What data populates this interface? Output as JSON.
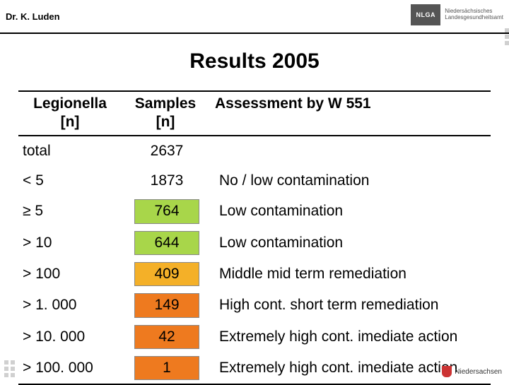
{
  "header": {
    "author": "Dr. K. Luden",
    "logo_abbrev": "NLGA",
    "logo_line1": "Niedersächsisches",
    "logo_line2": "Landesgesundheitsamt"
  },
  "title": "Results 2005",
  "table": {
    "columns": {
      "legionella": "Legionella\n[n]",
      "samples": "Samples\n[n]",
      "assessment": "Assessment by W 551"
    },
    "column_fontsize": 21,
    "cell_fontsize": 21,
    "border_color": "#000000",
    "cell_border_color": "#888888",
    "rows": [
      {
        "legionella": "total",
        "samples": "2637",
        "assessment": "",
        "samples_bg": "#ffffff"
      },
      {
        "legionella": "< 5",
        "samples": "1873",
        "assessment": "No / low contamination",
        "samples_bg": "#ffffff"
      },
      {
        "legionella": "≥ 5",
        "samples": "764",
        "assessment": "Low contamination",
        "samples_bg": "#a8d64a"
      },
      {
        "legionella": "> 10",
        "samples": "644",
        "assessment": "Low contamination",
        "samples_bg": "#a8d64a"
      },
      {
        "legionella": "> 100",
        "samples": "409",
        "assessment": "Middle mid term remediation",
        "samples_bg": "#f4b028"
      },
      {
        "legionella": "> 1. 000",
        "samples": "149",
        "assessment": "High cont. short term remediation",
        "samples_bg": "#ee7a1f"
      },
      {
        "legionella": "> 10. 000",
        "samples": "42",
        "assessment": "Extremely high cont. imediate action",
        "samples_bg": "#ee7a1f"
      },
      {
        "legionella": "> 100. 000",
        "samples": "1",
        "assessment": "Extremely high cont. imediate action",
        "samples_bg": "#ee7a1f"
      }
    ]
  },
  "footer": {
    "state": "Niedersachsen"
  },
  "colors": {
    "background": "#ffffff",
    "text": "#000000",
    "deco_square": "#d0d0d0"
  }
}
